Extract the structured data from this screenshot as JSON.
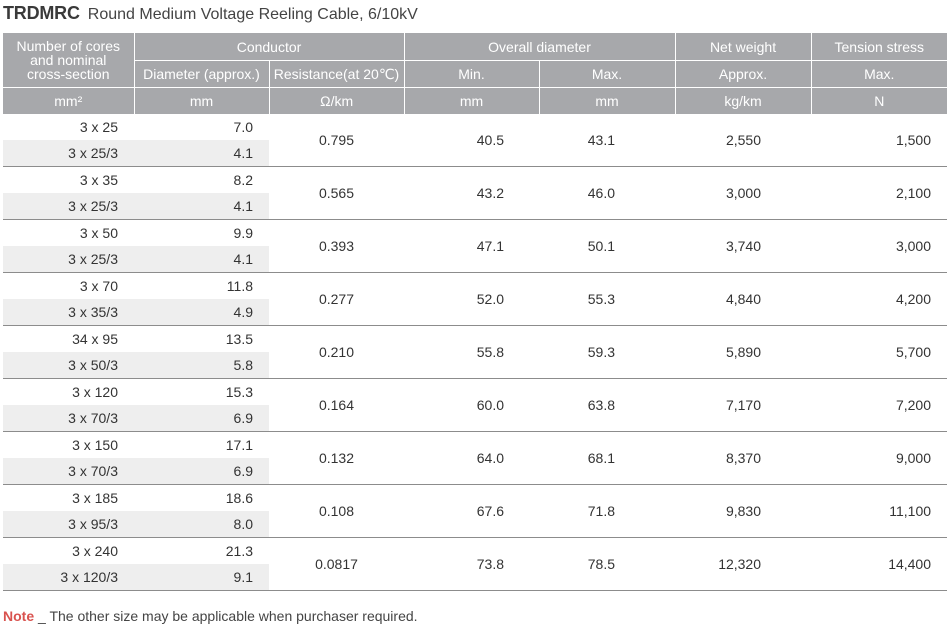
{
  "title": {
    "code": "TRDMRC",
    "description": "Round Medium Voltage Reeling Cable, 6/10kV"
  },
  "headers": {
    "cores_line1": "Number of cores",
    "cores_line2": "and nominal",
    "cores_line3": "cross-section",
    "conductor": "Conductor",
    "overall_diameter": "Overall diameter",
    "net_weight": "Net weight",
    "tension_stress": "Tension stress",
    "diameter": "Diameter (approx.)",
    "resistance": "Resistance(at 20℃)",
    "min": "Min.",
    "max": "Max.",
    "approx": "Approx.",
    "tension_max": "Max."
  },
  "units": {
    "cores": "mm²",
    "diameter": "mm",
    "resistance": "Ω/km",
    "min": "mm",
    "max": "mm",
    "weight": "kg/km",
    "tension": "N"
  },
  "rows": [
    {
      "cs1": "3 x 25",
      "d1": "7.0",
      "cs2": "3 x 25/3",
      "d2": "4.1",
      "res": "0.795",
      "min": "40.5",
      "max": "43.1",
      "weight": "2,550",
      "tension": "1,500"
    },
    {
      "cs1": "3 x 35",
      "d1": "8.2",
      "cs2": "3 x 25/3",
      "d2": "4.1",
      "res": "0.565",
      "min": "43.2",
      "max": "46.0",
      "weight": "3,000",
      "tension": "2,100"
    },
    {
      "cs1": "3 x 50",
      "d1": "9.9",
      "cs2": "3 x 25/3",
      "d2": "4.1",
      "res": "0.393",
      "min": "47.1",
      "max": "50.1",
      "weight": "3,740",
      "tension": "3,000"
    },
    {
      "cs1": "3 x 70",
      "d1": "11.8",
      "cs2": "3 x 35/3",
      "d2": "4.9",
      "res": "0.277",
      "min": "52.0",
      "max": "55.3",
      "weight": "4,840",
      "tension": "4,200"
    },
    {
      "cs1": "34 x 95",
      "d1": "13.5",
      "cs2": "3 x 50/3",
      "d2": "5.8",
      "res": "0.210",
      "min": "55.8",
      "max": "59.3",
      "weight": "5,890",
      "tension": "5,700"
    },
    {
      "cs1": "3 x 120",
      "d1": "15.3",
      "cs2": "3 x 70/3",
      "d2": "6.9",
      "res": "0.164",
      "min": "60.0",
      "max": "63.8",
      "weight": "7,170",
      "tension": "7,200"
    },
    {
      "cs1": "3 x 150",
      "d1": "17.1",
      "cs2": "3 x 70/3",
      "d2": "6.9",
      "res": "0.132",
      "min": "64.0",
      "max": "68.1",
      "weight": "8,370",
      "tension": "9,000"
    },
    {
      "cs1": "3 x 185",
      "d1": "18.6",
      "cs2": "3 x 95/3",
      "d2": "8.0",
      "res": "0.108",
      "min": "67.6",
      "max": "71.8",
      "weight": "9,830",
      "tension": "11,100"
    },
    {
      "cs1": "3 x 240",
      "d1": "21.3",
      "cs2": "3 x 120/3",
      "d2": "9.1",
      "res": "0.0817",
      "min": "73.8",
      "max": "78.5",
      "weight": "12,320",
      "tension": "14,400"
    }
  ],
  "note": {
    "label": "Note",
    "text": " _ The other size may be applicable when purchaser required."
  }
}
